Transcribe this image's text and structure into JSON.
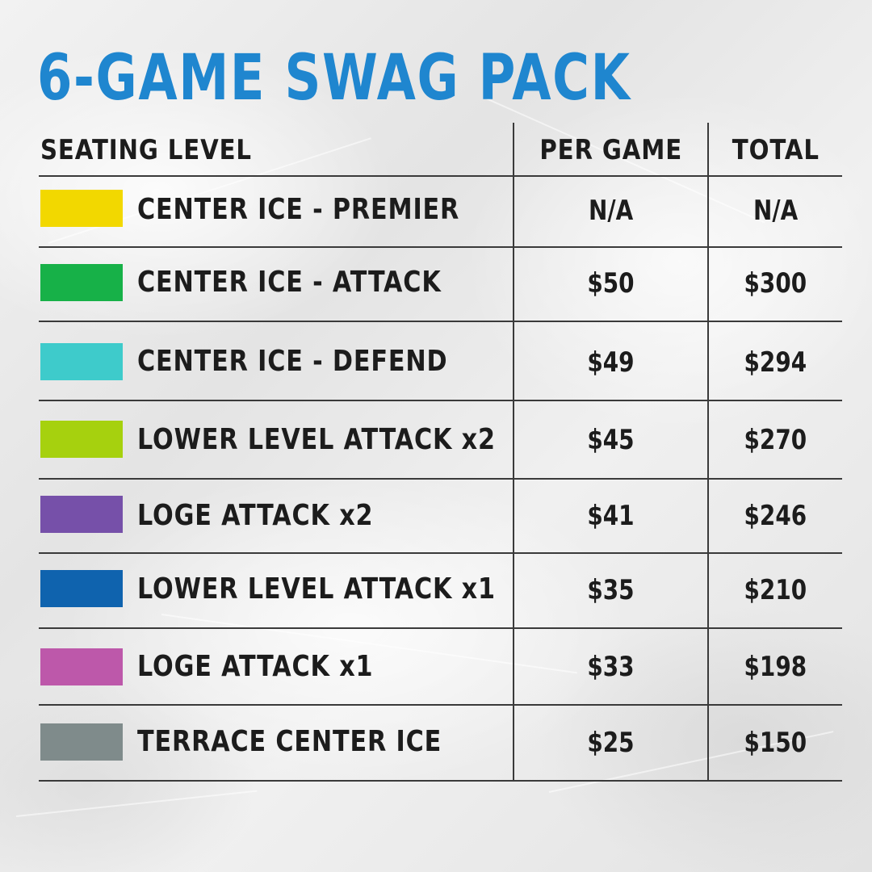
{
  "title": "6-GAME SWAG PACK",
  "table": {
    "headers": {
      "seating_level": "SEATING LEVEL",
      "per_game": "PER GAME",
      "total": "TOTAL"
    },
    "rows": [
      {
        "level": "CENTER ICE - PREMIER",
        "color": "#f2d800",
        "per_game": "N/A",
        "total": "N/A"
      },
      {
        "level": "CENTER ICE - ATTACK",
        "color": "#17b148",
        "per_game": "$50",
        "total": "$300"
      },
      {
        "level": "CENTER ICE - DEFEND",
        "color": "#3ecbcb",
        "per_game": "$49",
        "total": "$294"
      },
      {
        "level": "LOWER LEVEL ATTACK x2",
        "color": "#a6d10e",
        "per_game": "$45",
        "total": "$270"
      },
      {
        "level": "LOGE ATTACK x2",
        "color": "#7650a9",
        "per_game": "$41",
        "total": "$246"
      },
      {
        "level": "LOWER LEVEL ATTACK x1",
        "color": "#0f63ae",
        "per_game": "$35",
        "total": "$210"
      },
      {
        "level": "LOGE ATTACK x1",
        "color": "#bd58aa",
        "per_game": "$33",
        "total": "$198"
      },
      {
        "level": "TERRACE CENTER ICE",
        "color": "#7f8b8b",
        "per_game": "$25",
        "total": "$150"
      }
    ]
  },
  "colors": {
    "title": "#1f86cf",
    "text": "#1c1c1c",
    "rules": "#3a3a3a"
  }
}
